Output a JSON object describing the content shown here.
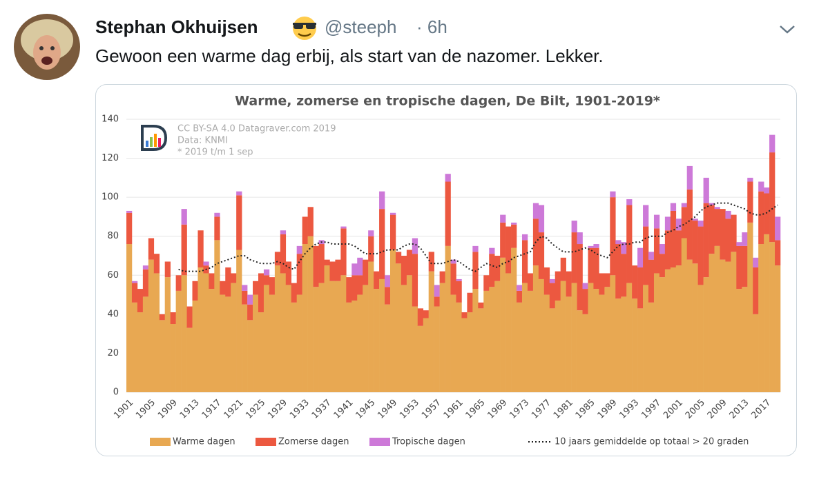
{
  "tweet": {
    "name": "Stephan Okhuijsen",
    "handle": "@steeph",
    "time": "· 6h",
    "text": "Gewoon een warme dag erbij, als start van de nazomer. Lekker."
  },
  "chart_data": {
    "type": "bar",
    "stacked": true,
    "title": "Warme, zomerse en tropische dagen, De Bilt, 1901-2019*",
    "annotations": [
      "CC BY-SA 4.0 Datagraver.com 2019",
      "Data: KNMI",
      "* 2019 t/m 1 sep"
    ],
    "categories": [
      "1901",
      null,
      null,
      null,
      "1905",
      null,
      null,
      null,
      "1909",
      null,
      null,
      null,
      "1913",
      null,
      null,
      null,
      "1917",
      null,
      null,
      null,
      "1921",
      null,
      null,
      null,
      "1925",
      null,
      null,
      null,
      "1929",
      null,
      null,
      null,
      "1933",
      null,
      null,
      null,
      "1937",
      null,
      null,
      null,
      "1941",
      null,
      null,
      null,
      "1945",
      null,
      null,
      null,
      "1949",
      null,
      null,
      null,
      "1953",
      null,
      null,
      null,
      "1957",
      null,
      null,
      null,
      "1961",
      null,
      null,
      null,
      "1965",
      null,
      null,
      null,
      "1969",
      null,
      null,
      null,
      "1973",
      null,
      null,
      null,
      "1977",
      null,
      null,
      null,
      "1981",
      null,
      null,
      null,
      "1985",
      null,
      null,
      null,
      "1989",
      null,
      null,
      null,
      "1993",
      null,
      null,
      null,
      "1997",
      null,
      null,
      null,
      "2001",
      null,
      null,
      null,
      "2005",
      null,
      null,
      null,
      "2009",
      null,
      null,
      null,
      "2013",
      null,
      null,
      null,
      "2017",
      null,
      null
    ],
    "series": [
      {
        "name": "Warme dagen",
        "color": "#e8a852",
        "values": [
          76,
          46,
          41,
          49,
          68,
          61,
          37,
          59,
          35,
          52,
          60,
          33,
          47,
          64,
          61,
          53,
          78,
          50,
          49,
          56,
          73,
          45,
          37,
          50,
          41,
          55,
          50,
          65,
          61,
          55,
          46,
          50,
          76,
          80,
          54,
          56,
          65,
          57,
          57,
          60,
          46,
          47,
          50,
          55,
          67,
          53,
          58,
          45,
          73,
          66,
          55,
          60,
          44,
          34,
          38,
          62,
          44,
          56,
          75,
          50,
          46,
          38,
          41,
          53,
          43,
          52,
          54,
          57,
          69,
          61,
          74,
          46,
          56,
          52,
          65,
          58,
          50,
          43,
          47,
          57,
          49,
          56,
          42,
          40,
          56,
          53,
          50,
          54,
          60,
          48,
          49,
          56,
          48,
          43,
          55,
          46,
          61,
          59,
          63,
          64,
          65,
          79,
          68,
          66,
          55,
          59,
          71,
          75,
          68,
          67,
          72,
          53,
          54,
          87,
          40,
          76,
          81,
          77,
          65
        ]
      },
      {
        "name": "Zomerse dagen",
        "color": "#ec5840",
        "values": [
          16,
          10,
          12,
          14,
          11,
          10,
          3,
          8,
          6,
          8,
          26,
          11,
          10,
          19,
          4,
          8,
          12,
          7,
          15,
          5,
          28,
          7,
          8,
          7,
          20,
          5,
          9,
          7,
          20,
          12,
          10,
          21,
          14,
          15,
          21,
          20,
          3,
          10,
          11,
          24,
          13,
          13,
          10,
          13,
          13,
          9,
          36,
          9,
          18,
          6,
          15,
          13,
          27,
          9,
          4,
          10,
          5,
          6,
          33,
          16,
          11,
          3,
          10,
          19,
          3,
          8,
          17,
          13,
          18,
          24,
          12,
          6,
          22,
          9,
          24,
          24,
          14,
          13,
          15,
          12,
          13,
          26,
          34,
          13,
          18,
          21,
          11,
          7,
          40,
          28,
          22,
          40,
          17,
          21,
          30,
          22,
          23,
          12,
          20,
          29,
          18,
          16,
          36,
          22,
          30,
          38,
          25,
          19,
          26,
          22,
          19,
          22,
          21,
          21,
          24,
          27,
          21,
          46,
          13
        ]
      },
      {
        "name": "Tropische dagen",
        "color": "#cd79d8",
        "values": [
          1,
          1,
          0,
          2,
          0,
          0,
          0,
          0,
          0,
          0,
          8,
          0,
          0,
          0,
          2,
          0,
          2,
          0,
          0,
          0,
          2,
          3,
          5,
          0,
          0,
          3,
          0,
          0,
          2,
          0,
          0,
          4,
          0,
          0,
          0,
          2,
          0,
          0,
          0,
          1,
          0,
          6,
          9,
          0,
          3,
          0,
          9,
          6,
          1,
          0,
          0,
          0,
          8,
          0,
          0,
          0,
          6,
          0,
          4,
          2,
          1,
          0,
          0,
          3,
          0,
          0,
          3,
          0,
          4,
          0,
          1,
          3,
          3,
          0,
          8,
          14,
          0,
          2,
          0,
          0,
          0,
          6,
          6,
          3,
          1,
          2,
          0,
          0,
          3,
          2,
          6,
          3,
          0,
          10,
          11,
          4,
          7,
          5,
          7,
          4,
          6,
          2,
          12,
          1,
          3,
          13,
          1,
          1,
          0,
          4,
          0,
          2,
          7,
          2,
          5,
          5,
          3,
          9,
          12
        ]
      },
      {
        "name": "10 jaars gemiddelde op totaal > 20 graden",
        "type": "line",
        "color": "#222222",
        "values": [
          null,
          null,
          null,
          null,
          null,
          null,
          null,
          null,
          null,
          63,
          62,
          62,
          62,
          62,
          63,
          64,
          66,
          67,
          68,
          69,
          70,
          70,
          68,
          67,
          66,
          66,
          66,
          67,
          66,
          64,
          63,
          67,
          71,
          74,
          76,
          77,
          77,
          76,
          76,
          76,
          76,
          75,
          73,
          71,
          71,
          71,
          72,
          73,
          73,
          73,
          75,
          76,
          76,
          74,
          70,
          66,
          66,
          66,
          67,
          68,
          67,
          65,
          63,
          62,
          64,
          66,
          65,
          64,
          66,
          67,
          69,
          70,
          71,
          72,
          77,
          80,
          79,
          76,
          74,
          72,
          72,
          72,
          73,
          74,
          73,
          71,
          70,
          69,
          72,
          75,
          76,
          76,
          77,
          77,
          79,
          80,
          80,
          80,
          82,
          83,
          85,
          86,
          88,
          90,
          93,
          95,
          96,
          97,
          97,
          97,
          96,
          95,
          94,
          92,
          91,
          91,
          92,
          94,
          96
        ]
      }
    ],
    "ylim": [
      0,
      140
    ],
    "yticks": [
      0,
      20,
      40,
      60,
      80,
      100,
      120,
      140
    ],
    "grid": true
  }
}
